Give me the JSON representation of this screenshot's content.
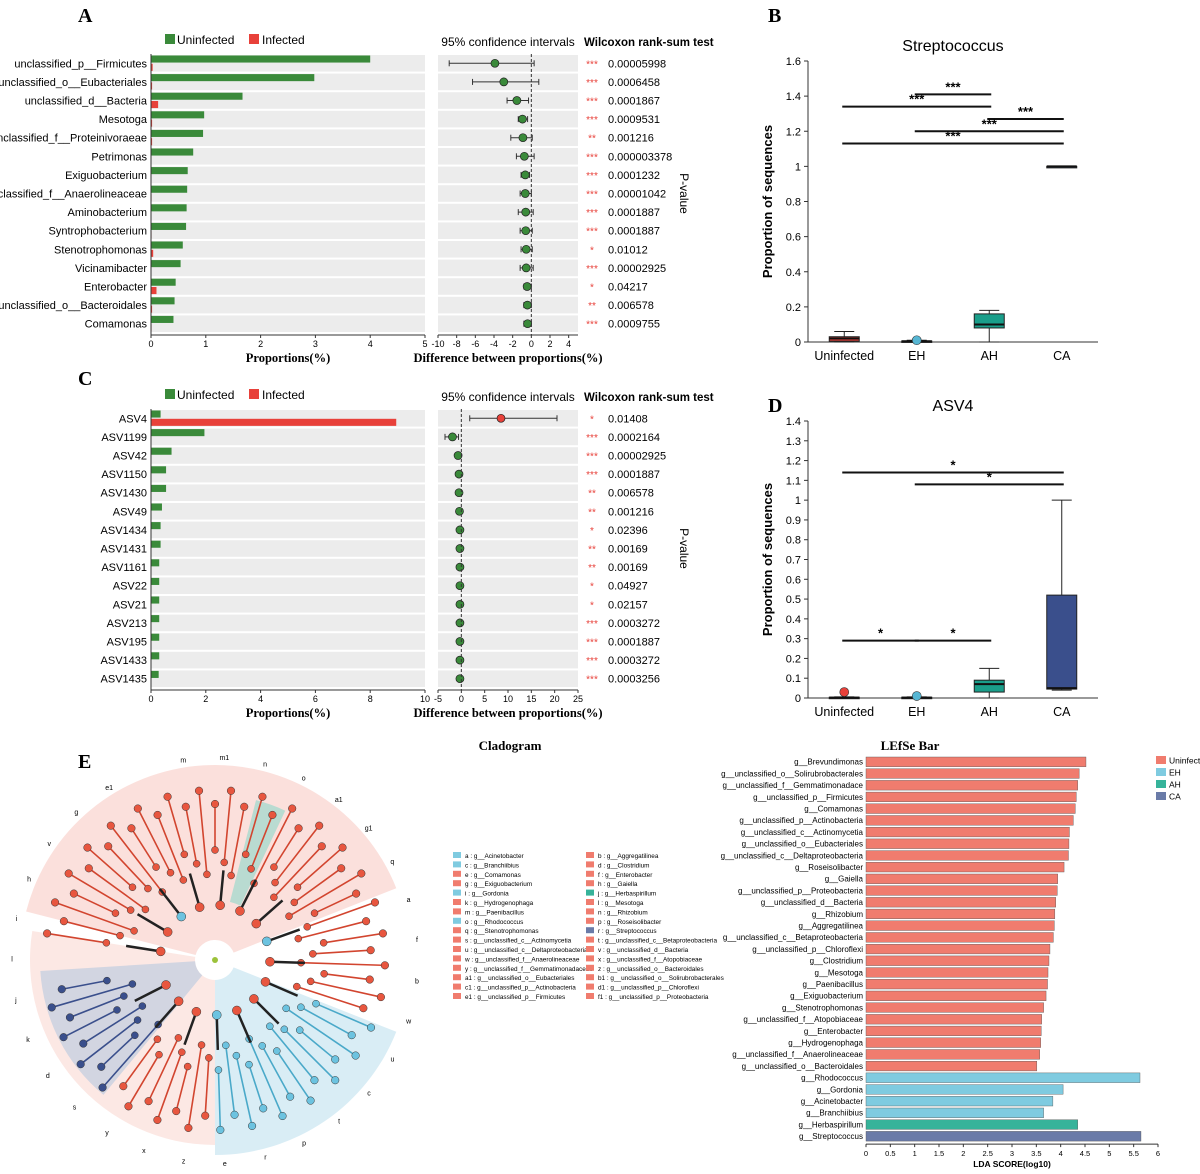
{
  "panel_letters": [
    "A",
    "B",
    "C",
    "D",
    "E"
  ],
  "colors": {
    "uninfected_green": "#3a8a3a",
    "infected_red": "#e8413a",
    "sig_red": "#e8413a",
    "row_bg": "#ececec",
    "box_red": "#e8413a",
    "box_cyan": "#56b6d3",
    "box_teal": "#1a9e8a",
    "box_blue": "#3a4f8c",
    "lefse_uninfected": "#f07c6e",
    "lefse_eh": "#7fcbe0",
    "lefse_ah": "#36b39a",
    "lefse_ca": "#6a7ba8"
  },
  "chart_data": [
    {
      "id": "A",
      "type": "bar",
      "legend": [
        "Uninfected",
        "Infected"
      ],
      "xlabel": "Proportions(%)",
      "xticks": [
        "0",
        "1",
        "2",
        "3",
        "4",
        "5"
      ],
      "xlim": [
        0,
        5
      ],
      "categories": [
        "unclassified_p__Firmicutes",
        "unclassified_o__Eubacteriales",
        "unclassified_d__Bacteria",
        "Mesotoga",
        "unclassified_f__Proteinivoraeae",
        "Petrimonas",
        "Exiguobacterium",
        "unclassified_f__Anaerolineaceae",
        "Aminobacterium",
        "Syntrophobacterium",
        "Stenotrophomonas",
        "Vicinamibacter",
        "Enterobacter",
        "unclassified_o__Bacteroidales",
        "Comamonas"
      ],
      "series": [
        {
          "name": "Uninfected",
          "values": [
            4.0,
            2.98,
            1.67,
            0.97,
            0.95,
            0.77,
            0.67,
            0.66,
            0.65,
            0.64,
            0.58,
            0.54,
            0.45,
            0.43,
            0.41
          ]
        },
        {
          "name": "Infected",
          "values": [
            0.03,
            0.02,
            0.13,
            0.02,
            0.02,
            0.0,
            0.0,
            0.01,
            0.0,
            0.01,
            0.04,
            0.0,
            0.1,
            0.02,
            0.01
          ]
        }
      ],
      "ci_title": "95% confidence intervals",
      "ci_xlabel": "Difference between proportions(%)",
      "ci_xticks": [
        "-10",
        "-8",
        "-6",
        "-4",
        "-2",
        "0",
        "2",
        "4"
      ],
      "ci_xlim": [
        -10,
        5
      ],
      "diff": [
        -3.9,
        -2.95,
        -1.55,
        -0.95,
        -0.9,
        -0.75,
        -0.65,
        -0.65,
        -0.6,
        -0.6,
        -0.55,
        -0.55,
        -0.45,
        -0.42,
        -0.4
      ],
      "ci_low": [
        -8.8,
        -6.3,
        -2.6,
        -1.4,
        -2.2,
        -1.6,
        -1.1,
        -1.2,
        -1.4,
        -1.2,
        -1.1,
        -1.2,
        -0.8,
        -0.8,
        -0.8
      ],
      "ci_high": [
        0.3,
        0.8,
        -0.3,
        -0.4,
        0.1,
        0.3,
        -0.2,
        0.0,
        0.2,
        0.1,
        0.1,
        0.2,
        0.0,
        0.0,
        0.0
      ],
      "point_color": "uninfected_green",
      "test_title": "Wilcoxon rank-sum test",
      "stars": [
        "***",
        "***",
        "***",
        "***",
        "**",
        "***",
        "***",
        "***",
        "***",
        "***",
        "*",
        "***",
        "*",
        "**",
        "***"
      ],
      "pvalues": [
        "0.00005998",
        "0.0006458",
        "0.0001867",
        "0.0009531",
        "0.001216",
        "0.000003378",
        "0.0001232",
        "0.00001042",
        "0.0001887",
        "0.0001887",
        "0.01012",
        "0.00002925",
        "0.04217",
        "0.006578",
        "0.0009755"
      ],
      "pvalue_axis": "P-value"
    },
    {
      "id": "C",
      "type": "bar",
      "legend": [
        "Uninfected",
        "Infected"
      ],
      "xlabel": "Proportions(%)",
      "xticks": [
        "0",
        "2",
        "4",
        "6",
        "8",
        "10"
      ],
      "xlim": [
        0,
        10
      ],
      "categories": [
        "ASV4",
        "ASV1199",
        "ASV42",
        "ASV1150",
        "ASV1430",
        "ASV49",
        "ASV1434",
        "ASV1431",
        "ASV1161",
        "ASV22",
        "ASV21",
        "ASV213",
        "ASV195",
        "ASV1433",
        "ASV1435"
      ],
      "series": [
        {
          "name": "Uninfected",
          "values": [
            0.35,
            1.95,
            0.75,
            0.55,
            0.55,
            0.4,
            0.35,
            0.35,
            0.3,
            0.3,
            0.3,
            0.3,
            0.3,
            0.3,
            0.28
          ]
        },
        {
          "name": "Infected",
          "values": [
            8.95,
            0.0,
            0.0,
            0.0,
            0.0,
            0.0,
            0.0,
            0.0,
            0.0,
            0.0,
            0.0,
            0.0,
            0.0,
            0.0,
            0.0
          ]
        }
      ],
      "ci_title": "95% confidence intervals",
      "ci_xlabel": "Difference between proportions(%)",
      "ci_xticks": [
        "-5",
        "0",
        "5",
        "10",
        "15",
        "20",
        "25"
      ],
      "ci_xlim": [
        -5,
        25
      ],
      "diff": [
        8.5,
        -1.9,
        -0.7,
        -0.5,
        -0.5,
        -0.4,
        -0.3,
        -0.3,
        -0.3,
        -0.3,
        -0.3,
        -0.3,
        -0.3,
        -0.3,
        -0.3
      ],
      "ci_low": [
        1.8,
        -3.5,
        -1.2,
        -0.9,
        -0.9,
        -0.8,
        -0.7,
        -0.7,
        -0.7,
        -0.7,
        -0.7,
        -0.7,
        -0.7,
        -0.7,
        -0.7
      ],
      "ci_high": [
        20.5,
        -0.6,
        -0.3,
        -0.2,
        -0.2,
        -0.1,
        0.0,
        0.0,
        0.0,
        0.0,
        0.0,
        0.0,
        0.0,
        0.0,
        0.0
      ],
      "point_colors": [
        "infected_red",
        "uninfected_green",
        "uninfected_green",
        "uninfected_green",
        "uninfected_green",
        "uninfected_green",
        "uninfected_green",
        "uninfected_green",
        "uninfected_green",
        "uninfected_green",
        "uninfected_green",
        "uninfected_green",
        "uninfected_green",
        "uninfected_green",
        "uninfected_green"
      ],
      "test_title": "Wilcoxon rank-sum test",
      "stars": [
        "*",
        "***",
        "***",
        "***",
        "**",
        "**",
        "*",
        "**",
        "**",
        "*",
        "*",
        "***",
        "***",
        "***",
        "***"
      ],
      "pvalues": [
        "0.01408",
        "0.0002164",
        "0.00002925",
        "0.0001887",
        "0.006578",
        "0.001216",
        "0.02396",
        "0.00169",
        "0.00169",
        "0.04927",
        "0.02157",
        "0.0003272",
        "0.0001887",
        "0.0003272",
        "0.0003256"
      ],
      "pvalue_axis": "P-value"
    },
    {
      "id": "B",
      "type": "box",
      "title": "Streptococcus",
      "ylabel": "Proportion of sequences",
      "ylim": [
        0,
        1.6
      ],
      "yticks": [
        "0",
        "0.2",
        "0.4",
        "0.6",
        "0.8",
        "1",
        "1.2",
        "1.4",
        "1.6"
      ],
      "categories": [
        "Uninfected",
        "EH",
        "AH",
        "CA"
      ],
      "boxes": [
        {
          "group": "Uninfected",
          "min": 0.0,
          "q1": 0.005,
          "median": 0.02,
          "q3": 0.03,
          "max": 0.06,
          "color": "box_red",
          "outlier": null
        },
        {
          "group": "EH",
          "min": 0.0,
          "q1": 0.002,
          "median": 0.004,
          "q3": 0.006,
          "max": 0.01,
          "color": "box_cyan",
          "outlier": 0.01
        },
        {
          "group": "AH",
          "min": 0.0,
          "q1": 0.08,
          "median": 0.1,
          "q3": 0.16,
          "max": 0.18,
          "color": "box_teal",
          "outlier": null
        },
        {
          "group": "CA",
          "min": 1.0,
          "q1": 1.0,
          "median": 1.0,
          "q3": 1.0,
          "max": 1.0,
          "color": "box_blue",
          "outlier": null
        }
      ],
      "significance": [
        {
          "from": 1,
          "to": 2,
          "y": 1.41,
          "label": "***"
        },
        {
          "from": 0,
          "to": 2,
          "y": 1.34,
          "label": "***"
        },
        {
          "from": 2,
          "to": 3,
          "y": 1.27,
          "label": "***"
        },
        {
          "from": 1,
          "to": 3,
          "y": 1.2,
          "label": "***"
        },
        {
          "from": 0,
          "to": 3,
          "y": 1.13,
          "label": "***"
        }
      ]
    },
    {
      "id": "D",
      "type": "box",
      "title": "ASV4",
      "ylabel": "Proportion of sequences",
      "ylim": [
        0,
        1.4
      ],
      "yticks": [
        "0",
        "0.1",
        "0.2",
        "0.3",
        "0.4",
        "0.5",
        "0.6",
        "0.7",
        "0.8",
        "0.9",
        "1",
        "1.1",
        "1.2",
        "1.3",
        "1.4"
      ],
      "categories": [
        "Uninfected",
        "EH",
        "AH",
        "CA"
      ],
      "boxes": [
        {
          "group": "Uninfected",
          "min": 0.0,
          "q1": 0.0,
          "median": 0.002,
          "q3": 0.004,
          "max": 0.006,
          "color": "box_red",
          "outlier": 0.03
        },
        {
          "group": "EH",
          "min": 0.0,
          "q1": 0.0,
          "median": 0.002,
          "q3": 0.004,
          "max": 0.006,
          "color": "box_cyan",
          "outlier": 0.01
        },
        {
          "group": "AH",
          "min": 0.0,
          "q1": 0.03,
          "median": 0.07,
          "q3": 0.09,
          "max": 0.15,
          "color": "box_teal",
          "outlier": null
        },
        {
          "group": "CA",
          "min": 0.04,
          "q1": 0.045,
          "median": 0.05,
          "q3": 0.52,
          "max": 1.0,
          "color": "box_blue",
          "outlier": null
        }
      ],
      "significance": [
        {
          "from": 0,
          "to": 3,
          "y": 1.14,
          "label": "*"
        },
        {
          "from": 1,
          "to": 3,
          "y": 1.08,
          "label": "*"
        },
        {
          "from": 0,
          "to": 1,
          "y": 0.29,
          "label": "*"
        },
        {
          "from": 1,
          "to": 2,
          "y": 0.29,
          "label": "*"
        }
      ]
    },
    {
      "id": "E-bar",
      "type": "bar",
      "title": "LEfSe Bar",
      "xlabel": "LDA SCORE(log10)",
      "xticks": [
        "0",
        "0.5",
        "1",
        "1.5",
        "2",
        "2.5",
        "3",
        "3.5",
        "4",
        "4.5",
        "5",
        "5.5",
        "6"
      ],
      "xlim": [
        0,
        6
      ],
      "legend": [
        "Uninfected",
        "EH",
        "AH",
        "CA"
      ],
      "categories": [
        "g__Brevundimonas",
        "g__unclassified_o__Solirubrobacterales",
        "g__unclassified_f__Gemmatimonadace",
        "g__unclassified_p__Firmicutes",
        "g__Comamonas",
        "g__unclassified_p__Actinobacteria",
        "g__unclassified_c__Actinomycetia",
        "g__unclassified_o__Eubacteriales",
        "g__unclassified_c__Deltaproteobacteria",
        "g__Roseisolibacter",
        "g__Gaiella",
        "g__unclassified_p__Proteobacteria",
        "g__unclassified_d__Bacteria",
        "g__Rhizobium",
        "g__Aggregatilinea",
        "g__unclassified_c__Betaproteobacteria",
        "g__unclassified_p__Chloroflexi",
        "g__Clostridium",
        "g__Mesotoga",
        "g__Paenibacillus",
        "g__Exiguobacterium",
        "g__Stenotrophomonas",
        "g__unclassified_f__Atopobiaceae",
        "g__Enterobacter",
        "g__Hydrogenophaga",
        "g__unclassified_f__Anaerolineaceae",
        "g__unclassified_o__Bacteroidales",
        "g__Rhodococcus",
        "g__Gordonia",
        "g__Acinetobacter",
        "g__Branchiibius",
        "g__Herbaspirillum",
        "g__Streptococcus"
      ],
      "values": [
        4.52,
        4.38,
        4.35,
        4.32,
        4.3,
        4.26,
        4.18,
        4.17,
        4.16,
        4.07,
        3.94,
        3.93,
        3.9,
        3.88,
        3.87,
        3.85,
        3.78,
        3.76,
        3.74,
        3.73,
        3.7,
        3.65,
        3.61,
        3.6,
        3.59,
        3.57,
        3.51,
        5.63,
        4.05,
        3.84,
        3.65,
        4.35,
        5.65
      ],
      "groups": [
        "Uninfected",
        "Uninfected",
        "Uninfected",
        "Uninfected",
        "Uninfected",
        "Uninfected",
        "Uninfected",
        "Uninfected",
        "Uninfected",
        "Uninfected",
        "Uninfected",
        "Uninfected",
        "Uninfected",
        "Uninfected",
        "Uninfected",
        "Uninfected",
        "Uninfected",
        "Uninfected",
        "Uninfected",
        "Uninfected",
        "Uninfected",
        "Uninfected",
        "Uninfected",
        "Uninfected",
        "Uninfected",
        "Uninfected",
        "Uninfected",
        "EH",
        "EH",
        "EH",
        "EH",
        "AH",
        "CA"
      ]
    }
  ],
  "cladogram": {
    "title": "Cladogram",
    "legend_left": [
      {
        "text": "a : g__Acinetobacter",
        "color": "lefse_eh"
      },
      {
        "text": "c : g__Branchiibius",
        "color": "lefse_eh"
      },
      {
        "text": "e : g__Comamonas",
        "color": "lefse_uninfected"
      },
      {
        "text": "g : g__Exiguobacterium",
        "color": "lefse_uninfected"
      },
      {
        "text": "i : g__Gordonia",
        "color": "lefse_eh"
      },
      {
        "text": "k : g__Hydrogenophaga",
        "color": "lefse_uninfected"
      },
      {
        "text": "m : g__Paenibacillus",
        "color": "lefse_uninfected"
      },
      {
        "text": "o : g__Rhodococcus",
        "color": "lefse_eh"
      },
      {
        "text": "q : g__Stenotrophomonas",
        "color": "lefse_uninfected"
      },
      {
        "text": "s : g__unclassified_c__Actinomycetia",
        "color": "lefse_uninfected"
      },
      {
        "text": "u : g__unclassified_c__Deltaproteobacteria",
        "color": "lefse_uninfected"
      },
      {
        "text": "w : g__unclassified_f__Anaerolineaceae",
        "color": "lefse_uninfected"
      },
      {
        "text": "y : g__unclassified_f__Gemmatimonadaceae",
        "color": "lefse_uninfected"
      },
      {
        "text": "a1 : g__unclassified_o__Eubacteriales",
        "color": "lefse_uninfected"
      },
      {
        "text": "c1 : g__unclassified_p__Actinobacteria",
        "color": "lefse_uninfected"
      },
      {
        "text": "e1 : g__unclassified_p__Firmicutes",
        "color": "lefse_uninfected"
      }
    ],
    "legend_right": [
      {
        "text": "b : g__Aggregatilinea",
        "color": "lefse_uninfected"
      },
      {
        "text": "d : g__Clostridium",
        "color": "lefse_uninfected"
      },
      {
        "text": "f : g__Enterobacter",
        "color": "lefse_uninfected"
      },
      {
        "text": "h : g__Gaiella",
        "color": "lefse_uninfected"
      },
      {
        "text": "j : g__Herbaspirillum",
        "color": "lefse_ah"
      },
      {
        "text": "l : g__Mesotoga",
        "color": "lefse_uninfected"
      },
      {
        "text": "n : g__Rhizobium",
        "color": "lefse_uninfected"
      },
      {
        "text": "p : g__Roseisolibacter",
        "color": "lefse_uninfected"
      },
      {
        "text": "r : g__Streptococcus",
        "color": "lefse_ca"
      },
      {
        "text": "t : g__unclassified_c__Betaproteobacteria",
        "color": "lefse_uninfected"
      },
      {
        "text": "v : g__unclassified_d__Bacteria",
        "color": "lefse_uninfected"
      },
      {
        "text": "x : g__unclassified_f__Atopobiaceae",
        "color": "lefse_uninfected"
      },
      {
        "text": "z : g__unclassified_o__Bacteroidales",
        "color": "lefse_uninfected"
      },
      {
        "text": "b1 : g__unclassified_o__Solirubrobacterales",
        "color": "lefse_uninfected"
      },
      {
        "text": "d1 : g__unclassified_p__Chloroflexi",
        "color": "lefse_uninfected"
      },
      {
        "text": "f1 : g__unclassified_p__Proteobacteria",
        "color": "lefse_uninfected"
      }
    ],
    "outer_labels": [
      "m",
      "m1",
      "n",
      "o",
      "a1",
      "g1",
      "q",
      "a",
      "f",
      "b",
      "w",
      "u",
      "c",
      "t",
      "p",
      "r",
      "e",
      "z",
      "x",
      "y",
      "s",
      "d",
      "k",
      "j",
      "l",
      "i",
      "h",
      "v",
      "g",
      "e1"
    ]
  }
}
